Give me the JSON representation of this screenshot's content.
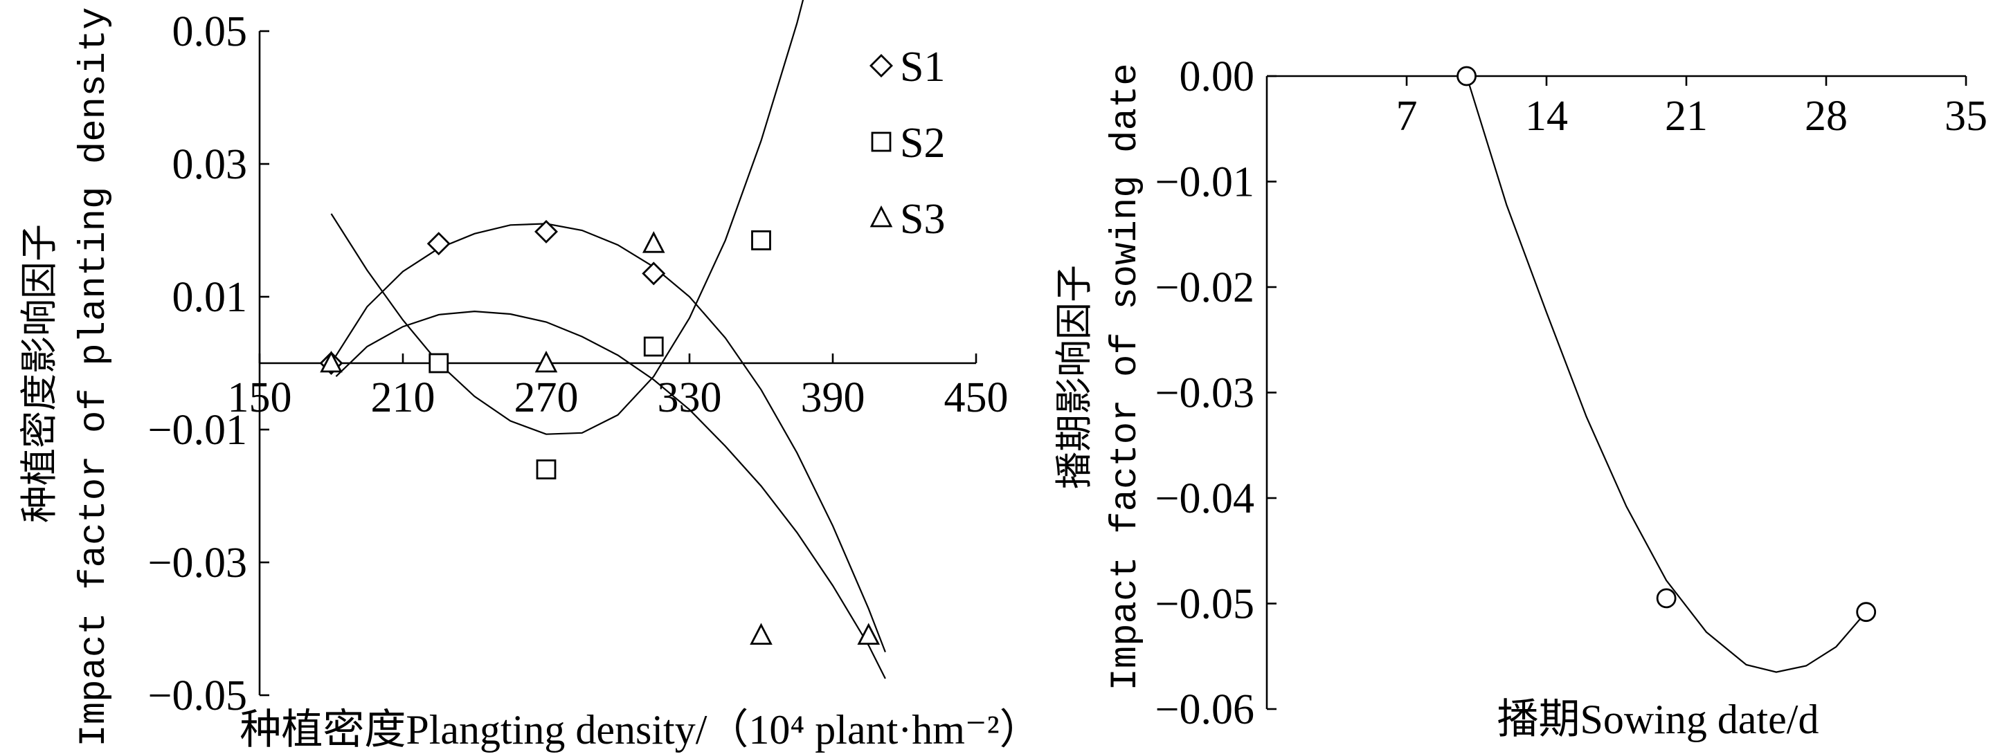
{
  "chart_data": [
    {
      "type": "scatter",
      "xlabel": "种植密度Plangting density/（10⁴ plant·hm⁻²）",
      "ylabel_cn": "种植密度影响因子",
      "ylabel_en": "Impact factor of planting density",
      "xlim": [
        150,
        450
      ],
      "ylim": [
        -0.05,
        0.05
      ],
      "xticks": [
        "150",
        "210",
        "270",
        "330",
        "390",
        "450"
      ],
      "yticks": [
        "0.05",
        "0.03",
        "0.01",
        "−0.01",
        "−0.03",
        "−0.05"
      ],
      "legend_position": "top-right",
      "series": [
        {
          "name": "S1",
          "marker": "diamond",
          "points": [
            [
              180,
              0.0
            ],
            [
              225,
              0.018
            ],
            [
              270,
              0.0198
            ],
            [
              315,
              0.0135
            ]
          ],
          "curve": [
            [
              180,
              0.0
            ],
            [
              195,
              0.0085
            ],
            [
              210,
              0.0138
            ],
            [
              225,
              0.0173
            ],
            [
              240,
              0.0195
            ],
            [
              255,
              0.0208
            ],
            [
              270,
              0.021
            ],
            [
              285,
              0.02
            ],
            [
              300,
              0.0178
            ],
            [
              315,
              0.0145
            ],
            [
              330,
              0.01
            ],
            [
              345,
              0.0038
            ],
            [
              360,
              -0.004
            ],
            [
              375,
              -0.0135
            ],
            [
              390,
              -0.0245
            ],
            [
              405,
              -0.037
            ],
            [
              412,
              -0.0435
            ]
          ]
        },
        {
          "name": "S2",
          "marker": "square",
          "points": [
            [
              225,
              0.0
            ],
            [
              270,
              -0.016
            ],
            [
              315,
              0.0025
            ],
            [
              360,
              0.0185
            ]
          ],
          "curve": [
            [
              180,
              0.0225
            ],
            [
              195,
              0.014
            ],
            [
              210,
              0.0065
            ],
            [
              225,
              0.0
            ],
            [
              240,
              -0.005
            ],
            [
              255,
              -0.0087
            ],
            [
              270,
              -0.0107
            ],
            [
              285,
              -0.0105
            ],
            [
              300,
              -0.0078
            ],
            [
              315,
              -0.002
            ],
            [
              330,
              0.0068
            ],
            [
              345,
              0.0185
            ],
            [
              360,
              0.0335
            ],
            [
              375,
              0.0512
            ],
            [
              381,
              0.0595
            ]
          ]
        },
        {
          "name": "S3",
          "marker": "triangle",
          "points": [
            [
              180,
              0.0
            ],
            [
              270,
              0.0
            ],
            [
              315,
              0.018
            ],
            [
              360,
              -0.041
            ],
            [
              405,
              -0.041
            ]
          ],
          "curve": [
            [
              182,
              -0.002
            ],
            [
              195,
              0.0025
            ],
            [
              210,
              0.0055
            ],
            [
              225,
              0.0073
            ],
            [
              240,
              0.0078
            ],
            [
              255,
              0.0074
            ],
            [
              270,
              0.0062
            ],
            [
              285,
              0.004
            ],
            [
              300,
              0.0012
            ],
            [
              315,
              -0.0025
            ],
            [
              330,
              -0.007
            ],
            [
              345,
              -0.0125
            ],
            [
              360,
              -0.0185
            ],
            [
              375,
              -0.0255
            ],
            [
              390,
              -0.0335
            ],
            [
              405,
              -0.0425
            ],
            [
              412,
              -0.0475
            ]
          ]
        }
      ]
    },
    {
      "type": "scatter",
      "xlabel": "播期Sowing date/d",
      "ylabel_cn": "播期影响因子",
      "ylabel_en": "Impact factor of sowing date",
      "xlim": [
        0,
        35
      ],
      "ylim": [
        -0.06,
        0.0
      ],
      "xticks": [
        "7",
        "14",
        "21",
        "28",
        "35"
      ],
      "yticks": [
        "0.00",
        "−0.01",
        "−0.02",
        "−0.03",
        "−0.04",
        "−0.05",
        "−0.06"
      ],
      "series": [
        {
          "marker": "circle",
          "points": [
            [
              10,
              0.0
            ],
            [
              20,
              -0.0495
            ],
            [
              30,
              -0.0508
            ]
          ],
          "curve": [
            [
              10,
              0.0
            ],
            [
              12,
              -0.0122
            ],
            [
              14,
              -0.0224
            ],
            [
              16,
              -0.0323
            ],
            [
              18,
              -0.0408
            ],
            [
              20,
              -0.0478
            ],
            [
              22,
              -0.0527
            ],
            [
              24,
              -0.0558
            ],
            [
              25.5,
              -0.0565
            ],
            [
              27,
              -0.0559
            ],
            [
              28.5,
              -0.0541
            ],
            [
              30,
              -0.0508
            ]
          ]
        }
      ]
    }
  ]
}
